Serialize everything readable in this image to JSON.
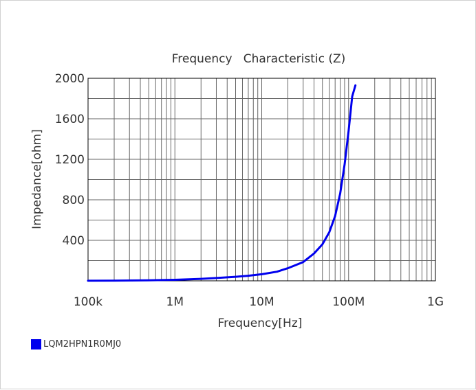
{
  "chart_data": {
    "type": "line",
    "title": "Frequency   Characteristic (Z)",
    "xlabel": "Frequency[Hz]",
    "ylabel": "Impedance[ohm]",
    "x_scale": "log",
    "xlim": [
      100000,
      1000000000
    ],
    "ylim": [
      0,
      2000
    ],
    "x_tick_labels": [
      "100k",
      "1M",
      "10M",
      "100M",
      "1G"
    ],
    "y_tick_labels": [
      "2000",
      "1600",
      "1200",
      "800",
      "400"
    ],
    "y_tick_values": [
      2000,
      1600,
      1200,
      800,
      400
    ],
    "grid": true,
    "legend_position": "bottom-left",
    "series": [
      {
        "name": "LQM2HPN1R0MJ0",
        "color": "#0000ee",
        "x": [
          100000,
          200000,
          500000,
          1000000,
          2000000,
          3000000,
          5000000,
          7000000,
          10000000,
          15000000,
          20000000,
          30000000,
          40000000,
          50000000,
          60000000,
          70000000,
          80000000,
          90000000,
          100000000,
          110000000,
          120000000
        ],
        "y": [
          1,
          2,
          5,
          10,
          20,
          28,
          40,
          50,
          65,
          90,
          125,
          185,
          270,
          360,
          480,
          640,
          860,
          1150,
          1480,
          1820,
          1930
        ]
      }
    ]
  }
}
